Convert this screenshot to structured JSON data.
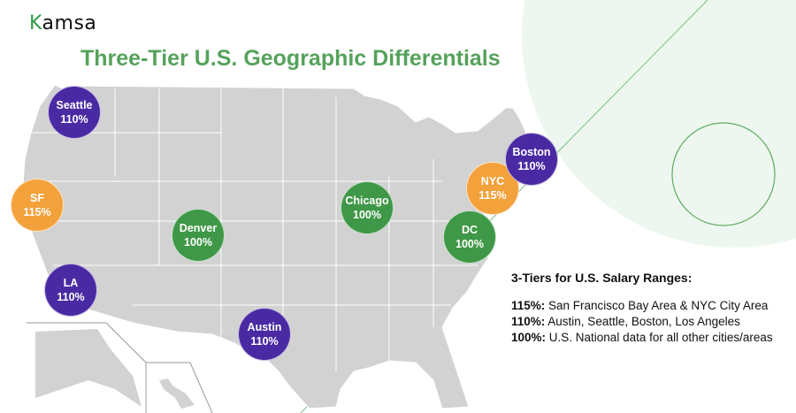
{
  "logo": {
    "text": "Kamsa",
    "first_letter": "K",
    "rest": "amsa"
  },
  "title": "Three-Tier U.S. Geographic Differentials",
  "colors": {
    "tier_115": "#f3a13a",
    "tier_110": "#4a2aa3",
    "tier_100": "#3f9847",
    "title": "#56a25c",
    "map": "#d2d2d2"
  },
  "cities": [
    {
      "name": "Seattle",
      "pct": "110%",
      "tier": "110"
    },
    {
      "name": "SF",
      "pct": "115%",
      "tier": "115"
    },
    {
      "name": "LA",
      "pct": "110%",
      "tier": "110"
    },
    {
      "name": "Denver",
      "pct": "100%",
      "tier": "100"
    },
    {
      "name": "Chicago",
      "pct": "100%",
      "tier": "100"
    },
    {
      "name": "DC",
      "pct": "100%",
      "tier": "100"
    },
    {
      "name": "NYC",
      "pct": "115%",
      "tier": "115"
    },
    {
      "name": "Boston",
      "pct": "110%",
      "tier": "110"
    },
    {
      "name": "Austin",
      "pct": "110%",
      "tier": "110"
    }
  ],
  "legend": {
    "heading": "3-Tiers for U.S. Salary Ranges:",
    "rows": [
      {
        "pct": "115%:",
        "text": " San Francisco Bay Area & NYC City Area"
      },
      {
        "pct": "110%:",
        "text": " Austin, Seattle, Boston, Los Angeles"
      },
      {
        "pct": "100%:",
        "text": " U.S. National data for all other cities/areas"
      }
    ]
  }
}
